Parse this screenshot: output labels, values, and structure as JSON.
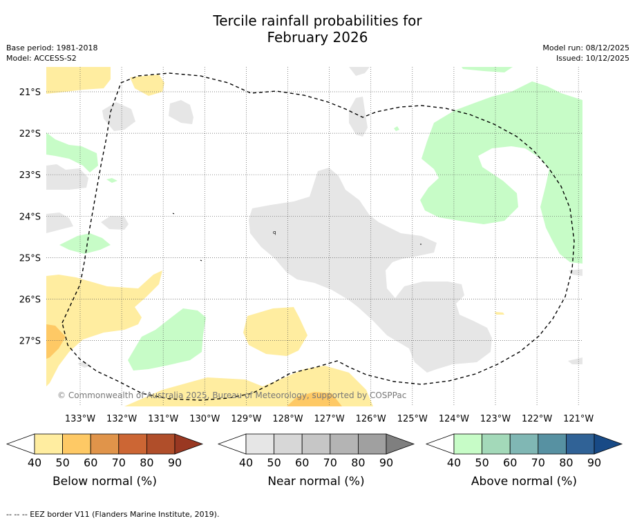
{
  "header": {
    "title_line1": "Tercile rainfall probabilities for",
    "title_line2": "February 2026",
    "base_period": "Base period: 1981-2018",
    "model": "Model: ACCESS-S2",
    "model_run": "Model run: 08/12/2025",
    "issued": "Issued: 10/12/2025"
  },
  "map": {
    "lat_labels": [
      "21°S",
      "22°S",
      "23°S",
      "24°S",
      "25°S",
      "26°S",
      "27°S"
    ],
    "lon_labels": [
      "133°W",
      "132°W",
      "131°W",
      "130°W",
      "129°W",
      "128°W",
      "127°W",
      "126°W",
      "125°W",
      "124°W",
      "123°W",
      "122°W",
      "121°W"
    ],
    "copyright": "© Commonwealth of Australia 2025, Bureau of Meteorology, supported by COSPPac",
    "colors": {
      "below_40": "#ffeda0",
      "below_50": "#fec965",
      "near_40": "#e6e6e6",
      "above_40": "#c7fcc7",
      "eez_line": "#000000",
      "grid": "#555555"
    }
  },
  "colorbars": [
    {
      "title": "Below normal (%)",
      "ticks": [
        "40",
        "50",
        "60",
        "70",
        "80",
        "90"
      ],
      "colors": [
        "#ffeda0",
        "#fec965",
        "#e0944a",
        "#cc6634",
        "#b04e2a"
      ],
      "under_color": "#ffffff",
      "over_color": "#993822"
    },
    {
      "title": "Near normal (%)",
      "ticks": [
        "40",
        "50",
        "60",
        "70",
        "80",
        "90"
      ],
      "colors": [
        "#e6e6e6",
        "#d7d7d7",
        "#c6c6c6",
        "#b4b4b4",
        "#a0a0a0"
      ],
      "under_color": "#ffffff",
      "over_color": "#7f7f7f"
    },
    {
      "title": "Above normal (%)",
      "ticks": [
        "40",
        "50",
        "60",
        "70",
        "80",
        "90"
      ],
      "colors": [
        "#c7fcc7",
        "#a3d9b9",
        "#80b7b4",
        "#5791a2",
        "#306296"
      ],
      "under_color": "#ffffff",
      "over_color": "#184a86"
    }
  ],
  "footer": {
    "eez_note": "--  --  -- EEZ border V11 (Flanders Marine Institute, 2019)."
  }
}
